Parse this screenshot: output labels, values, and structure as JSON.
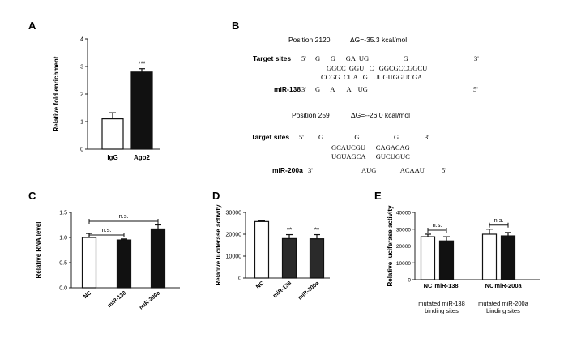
{
  "panels": {
    "A": {
      "letter": "A"
    },
    "B": {
      "letter": "B",
      "site1": {
        "position": "Position 2120",
        "dg": "ΔG=-35.3 kcal/mol",
        "target_label": "Target sites",
        "mirna_label": "miR-138",
        "target_5": "5'",
        "target_3": "3'",
        "mirna_3": "3'",
        "mirna_5": "5'",
        "top_unpaired": "G      G      GA  UG                    G",
        "top_paired": "GGCC  GGU   C   GGCGCCGGCU",
        "bottom_paired": "CCGG  CUA   G   UUGUGGUCGA",
        "bottom_unpaired": "G      A       A    UG"
      },
      "site2": {
        "position": "Position 259",
        "dg": "ΔG=--26.0 kcal/mol",
        "target_label": "Target sites",
        "mirna_label": "miR-200a",
        "target_5": "5'",
        "target_3": "3'",
        "mirna_3": "3'",
        "mirna_5": "5'",
        "top_unpaired": "G                  G                    G",
        "top_paired": "GCAUCGU      CAGACAG",
        "bottom_paired": "UGUAGCA      GUCUGUC",
        "bottom_unpaired": "AUG              ACAAU"
      }
    },
    "C": {
      "letter": "C"
    },
    "D": {
      "letter": "D"
    },
    "E": {
      "letter": "E",
      "group_labels": [
        "mutated miR-138\nbinding sites",
        "mutated miR-200a\nbinding sites"
      ],
      "group_label_lines": [
        [
          "mutated miR-138",
          "binding sites"
        ],
        [
          "mutated miR-200a",
          "binding sites"
        ]
      ]
    }
  },
  "chart_data": [
    {
      "panel": "A",
      "type": "bar",
      "categories": [
        "IgG",
        "Ago2"
      ],
      "values": [
        1.1,
        2.8
      ],
      "errors": [
        0.22,
        0.12
      ],
      "fills": [
        "#ffffff",
        "#111111"
      ],
      "ylabel": "Relative fold enrichment",
      "ylim": [
        0,
        4
      ],
      "yticks": [
        "0",
        "1",
        "2",
        "3",
        "4"
      ],
      "annotations": [
        {
          "category": "Ago2",
          "text": "***"
        }
      ]
    },
    {
      "panel": "C",
      "type": "bar",
      "categories": [
        "NC",
        "miR-138",
        "miR-200a"
      ],
      "values": [
        1.0,
        0.95,
        1.17
      ],
      "errors": [
        0.08,
        0.02,
        0.08
      ],
      "fills": [
        "#ffffff",
        "#111111",
        "#111111"
      ],
      "ylabel": "Relative RNA level",
      "ylim": [
        0,
        1.5
      ],
      "yticks": [
        "0.0",
        "0.5",
        "1.0",
        "1.5"
      ],
      "brackets": [
        {
          "from": "NC",
          "to": "miR-138",
          "text": "n.s."
        },
        {
          "from": "NC",
          "to": "miR-200a",
          "text": "n.s."
        }
      ]
    },
    {
      "panel": "D",
      "type": "bar",
      "categories": [
        "NC",
        "miR-138",
        "miR-200a"
      ],
      "values": [
        25800,
        18000,
        17900
      ],
      "errors": [
        300,
        1800,
        1900
      ],
      "fills": [
        "#ffffff",
        "#2a2a2a",
        "#2a2a2a"
      ],
      "ylabel": "Relative luciferase activity",
      "ylim": [
        0,
        30000
      ],
      "yticks": [
        "0",
        "10000",
        "20000",
        "30000"
      ],
      "annotations": [
        {
          "category": "miR-138",
          "text": "**"
        },
        {
          "category": "miR-200a",
          "text": "**"
        }
      ]
    },
    {
      "panel": "E",
      "type": "bar",
      "categories": [
        "NC",
        "miR-138",
        "NC",
        "miR-200a"
      ],
      "values": [
        25500,
        23000,
        27000,
        26000
      ],
      "errors": [
        1500,
        2500,
        3000,
        2000
      ],
      "fills": [
        "#ffffff",
        "#111111",
        "#ffffff",
        "#111111"
      ],
      "ylabel": "Relative luciferase activity",
      "ylim": [
        0,
        40000
      ],
      "yticks": [
        "0",
        "10000",
        "20000",
        "30000",
        "40000"
      ],
      "brackets": [
        {
          "from_index": 0,
          "to_index": 1,
          "text": "n.s."
        },
        {
          "from_index": 2,
          "to_index": 3,
          "text": "n.s."
        }
      ]
    }
  ]
}
